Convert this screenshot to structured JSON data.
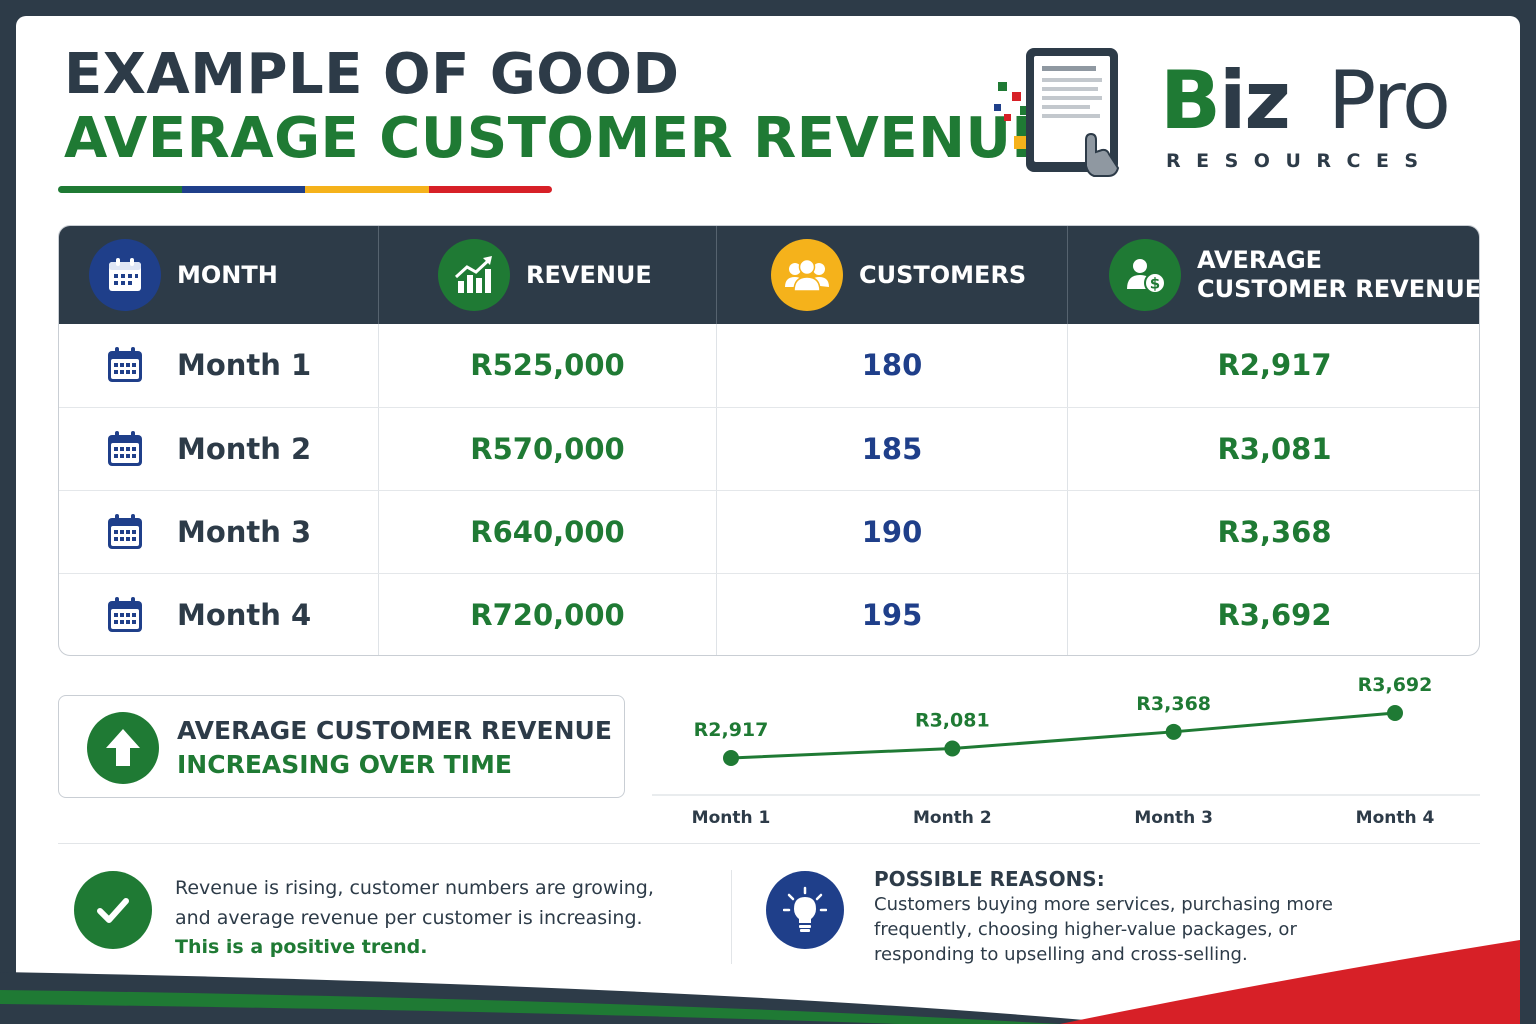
{
  "header": {
    "title_line1": "EXAMPLE OF GOOD",
    "title_line2": "AVERAGE CUSTOMER REVENUE"
  },
  "logo": {
    "biz": "Biz",
    "pro": "Pro",
    "subtitle": "RESOURCES"
  },
  "colors": {
    "dark": "#2d3b48",
    "green": "#1f7a34",
    "blue": "#1f3f8a",
    "yellow": "#f5b21b",
    "red": "#d72027"
  },
  "table": {
    "headers": {
      "month": "MONTH",
      "revenue": "REVENUE",
      "customers": "CUSTOMERS",
      "avg_line1": "AVERAGE",
      "avg_line2": "CUSTOMER REVENUE"
    },
    "header_icons": [
      "calendar-icon",
      "growth-chart-icon",
      "customers-icon",
      "customer-revenue-icon"
    ],
    "rows": [
      {
        "month": "Month 1",
        "revenue": "R525,000",
        "customers": "180",
        "avg": "R2,917"
      },
      {
        "month": "Month 2",
        "revenue": "R570,000",
        "customers": "185",
        "avg": "R3,081"
      },
      {
        "month": "Month 3",
        "revenue": "R640,000",
        "customers": "190",
        "avg": "R3,368"
      },
      {
        "month": "Month 4",
        "revenue": "R720,000",
        "customers": "195",
        "avg": "R3,692"
      }
    ]
  },
  "trend": {
    "line1": "AVERAGE CUSTOMER REVENUE",
    "line2": "INCREASING OVER TIME"
  },
  "chart_data": {
    "type": "line",
    "categories": [
      "Month 1",
      "Month 2",
      "Month 3",
      "Month 4"
    ],
    "series": [
      {
        "values": [
          2917,
          3081,
          3368,
          3692
        ]
      }
    ],
    "data_labels": [
      "R2,917",
      "R3,081",
      "R3,368",
      "R3,692"
    ],
    "color": "#1f7a34",
    "grid": false
  },
  "notes": {
    "left_text": "Revenue is rising, customer numbers are growing, and average revenue per customer is increasing.",
    "left_highlight": "This is a positive trend.",
    "reasons_title": "POSSIBLE REASONS:",
    "reasons_text": "Customers buying more services, purchasing more frequently, choosing higher-value packages, or responding to upselling and cross-selling."
  }
}
